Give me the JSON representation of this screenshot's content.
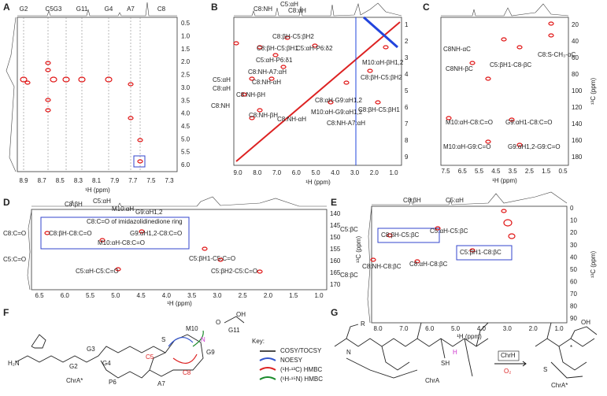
{
  "panels": {
    "A": {
      "label": "A",
      "xticks": [
        "8.9",
        "8.7",
        "8.5",
        "8.3",
        "8.1",
        "7.9",
        "7.7",
        "7.5",
        "7.3"
      ],
      "yticks": [
        "0.5",
        "1.0",
        "1.5",
        "2.0",
        "2.5",
        "3.0",
        "3.5",
        "4.0",
        "4.5",
        "5.0",
        "5.5",
        "6.0"
      ],
      "xlabel": "¹H (ppm)",
      "top": [
        "G2",
        "C5G3",
        "G11",
        "G4",
        "A7",
        "C8"
      ]
    },
    "B": {
      "label": "B",
      "xticks": [
        "9.0",
        "8.0",
        "7.0",
        "6.0",
        "5.0",
        "4.0",
        "3.0",
        "2.0",
        "1.0"
      ],
      "yticks": [
        "1",
        "2",
        "3",
        "4",
        "5",
        "6",
        "7",
        "8",
        "9"
      ],
      "xlabel": "¹H (ppm)",
      "top": [
        "C8:NH",
        "C5:αH",
        "C8:αH"
      ],
      "left": [
        "C5:αH",
        "C8:αH",
        "C8:NH"
      ],
      "notes": [
        "C8:βH-C5:βH2",
        "C8:βH-C5:βH1",
        "C5:αH-P6:δ2",
        "C5:αH-P6:δ1",
        "M10:αH-βH1,2",
        "C8:NH-A7:αH",
        "C8:NH-αH",
        "C8:βH-C5:βH2",
        "C8:NH-βH",
        "C8:αH-G9:αH1,2",
        "C8:βH-C5:βH1",
        "C8:NH-βH",
        "C8:NH-αH",
        "M10:αH-G9:αH1,2",
        "C8:NH-A7:αH"
      ]
    },
    "C": {
      "label": "C",
      "xticks": [
        "7.5",
        "6.5",
        "5.5",
        "4.5",
        "3.5",
        "2.5",
        "1.5",
        "0.5"
      ],
      "yticks": [
        "20",
        "40",
        "60",
        "80",
        "100",
        "120",
        "140",
        "160",
        "180"
      ],
      "xlabel": "¹H (ppm)",
      "ylabel": "¹³C (ppm)",
      "notes": [
        "C8NH-αC",
        "C8NH-βC",
        "C5:βH1-C8-βC",
        "C8:S-CH₃-αC",
        "M10:αH-C8:C=O",
        "G9:αH1-C8:C=O",
        "M10:αH-G9:C=O",
        "G9:αH1,2-G9:C=O"
      ]
    },
    "D": {
      "label": "D",
      "xticks": [
        "6.5",
        "6.0",
        "5.5",
        "5.0",
        "4.5",
        "4.0",
        "3.5",
        "3.0",
        "2.5",
        "2.0",
        "1.5",
        "1.0"
      ],
      "yticks": [
        "140",
        "145",
        "150",
        "155",
        "160",
        "165",
        "170"
      ],
      "xlabel": "¹H (ppm)",
      "ylabel": "¹³C (ppm)",
      "top": [
        "C8:βH",
        "C5:αH",
        "M10:αH",
        "G9:αH1,2"
      ],
      "left": [
        "C8:C=O",
        "C5:C=O"
      ],
      "box": "C8:C=O of imidazolidinedione ring",
      "notes": [
        "C8:βH-C8:C=O",
        "G9:αH1,2-C8:C=O",
        "M10:αH-C8:C=O",
        "C5:βH1-C5:C=O",
        "C5:αH-C5:C=O",
        "C5:βH2-C5:C=O"
      ]
    },
    "E": {
      "label": "E",
      "xticks": [
        "8.0",
        "7.0",
        "6.0",
        "5.0",
        "4.0",
        "3.0",
        "2.0",
        "1.0"
      ],
      "yticks": [
        "0",
        "10",
        "20",
        "30",
        "40",
        "50",
        "60",
        "70",
        "80",
        "90"
      ],
      "xlabel": "¹H (ppm)",
      "ylabel": "¹³C (ppm)",
      "top": [
        "C8:βH",
        "C5:αH"
      ],
      "left": [
        "C5:βC",
        "C8:βC"
      ],
      "notes": [
        "C8:βH-C5:βC",
        "C5:αH-C5:βC",
        "C5:βH1-C8:βC",
        "C8:αH-C8:βC",
        "C8:NH-C8:βC"
      ]
    },
    "F": {
      "label": "F",
      "residues": [
        "H₂N",
        "G2",
        "G3",
        "G4",
        "M10",
        "G11",
        "C5",
        "C8",
        "P6",
        "A7",
        "G9",
        "ChrA*",
        "S",
        "N",
        "OH",
        "O"
      ],
      "key": "Key:",
      "legend": [
        "COSY/TOCSY",
        "NOESY",
        "(¹H-¹³C) HMBC",
        "(¹H-¹⁵N) HMBC"
      ]
    },
    "G": {
      "label": "G",
      "texts": [
        "R",
        "N",
        "H",
        "SH",
        "ChrA",
        "ChrH",
        "O₂",
        "ChrA*",
        "OH",
        "S",
        "*"
      ]
    }
  }
}
